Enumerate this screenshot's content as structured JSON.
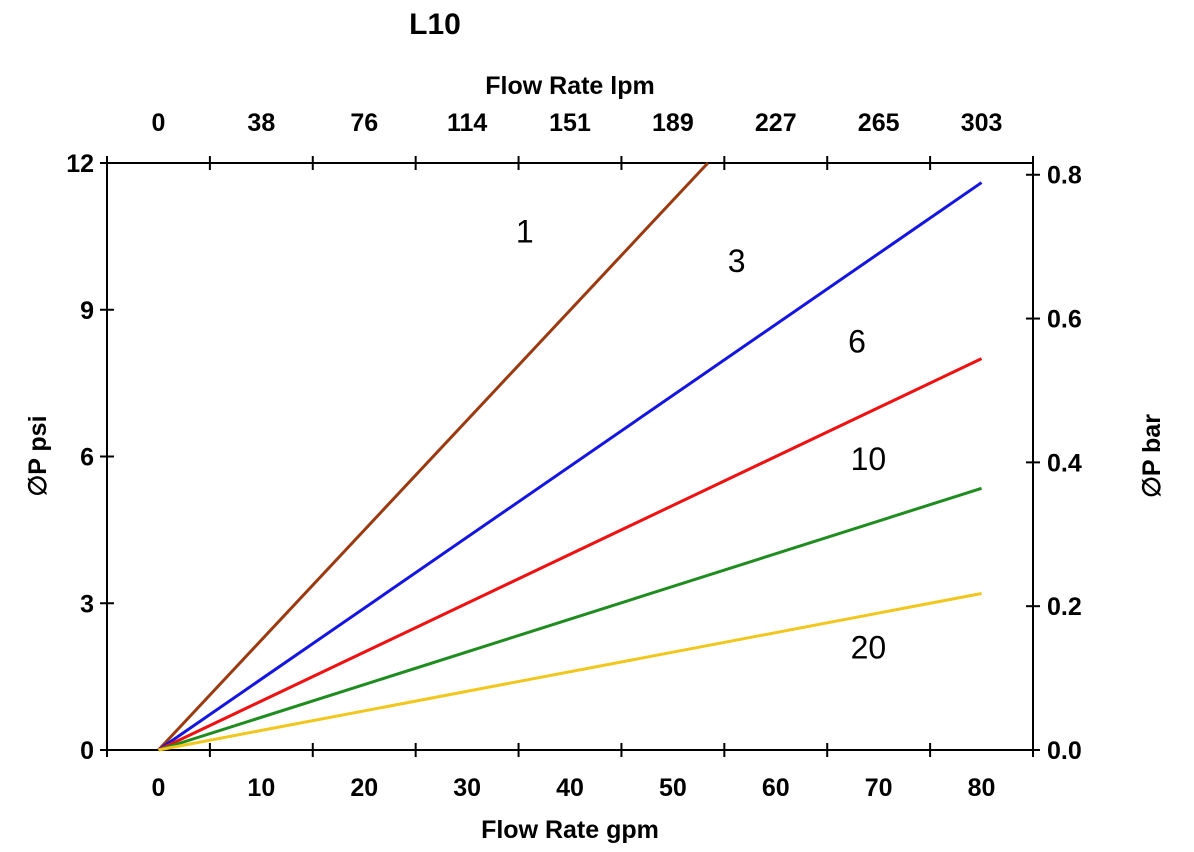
{
  "chart_data": {
    "type": "line",
    "title": "L10",
    "xlabel_top": "Flow Rate lpm",
    "xlabel_bottom": "Flow Rate gpm",
    "ylabel_left": "∅P psi",
    "ylabel_right": "∅P bar",
    "grid": false,
    "x_range_gpm": [
      -5,
      85
    ],
    "y_range_psi": [
      0,
      12
    ],
    "frame_tick_positions_gpm": [
      -5,
      5,
      15,
      25,
      35,
      45,
      55,
      65,
      75,
      85
    ],
    "x_ticks_gpm": [
      0,
      10,
      20,
      30,
      40,
      50,
      60,
      70,
      80
    ],
    "x_tick_labels_bottom": [
      "0",
      "10",
      "20",
      "30",
      "40",
      "50",
      "60",
      "70",
      "80"
    ],
    "x_tick_labels_top": [
      "0",
      "38",
      "76",
      "114",
      "151",
      "189",
      "227",
      "265",
      "303"
    ],
    "y_ticks_psi": [
      0,
      3,
      6,
      9,
      12
    ],
    "y_tick_labels_left": [
      "0",
      "3",
      "6",
      "9",
      "12"
    ],
    "y_ticks_bar": [
      0.0,
      0.2,
      0.4,
      0.6,
      0.8
    ],
    "y_tick_labels_right": [
      "0.0",
      "0.2",
      "0.4",
      "0.6",
      "0.8"
    ],
    "psi_per_bar": 14.7,
    "series": [
      {
        "name": "1",
        "color": "#9a3a10",
        "points_gpm_psi": [
          [
            0,
            0
          ],
          [
            53.4,
            12
          ]
        ],
        "label": {
          "text": "1",
          "gpm": 35.6,
          "psi": 10.6
        }
      },
      {
        "name": "3",
        "color": "#1515e0",
        "points_gpm_psi": [
          [
            0,
            0
          ],
          [
            80,
            11.6
          ]
        ],
        "label": {
          "text": "3",
          "gpm": 56.2,
          "psi": 10.0
        }
      },
      {
        "name": "6",
        "color": "#ee1111",
        "points_gpm_psi": [
          [
            0,
            0
          ],
          [
            80,
            8.0
          ]
        ],
        "label": {
          "text": "6",
          "gpm": 67.9,
          "psi": 8.35
        }
      },
      {
        "name": "10",
        "color": "#1f8c1f",
        "points_gpm_psi": [
          [
            0,
            0
          ],
          [
            80,
            5.35
          ]
        ],
        "label": {
          "text": "10",
          "gpm": 69.0,
          "psi": 5.95
        }
      },
      {
        "name": "20",
        "color": "#f2c71d",
        "points_gpm_psi": [
          [
            0,
            0
          ],
          [
            80,
            3.2
          ]
        ],
        "label": {
          "text": "20",
          "gpm": 69.0,
          "psi": 2.1
        }
      }
    ]
  }
}
